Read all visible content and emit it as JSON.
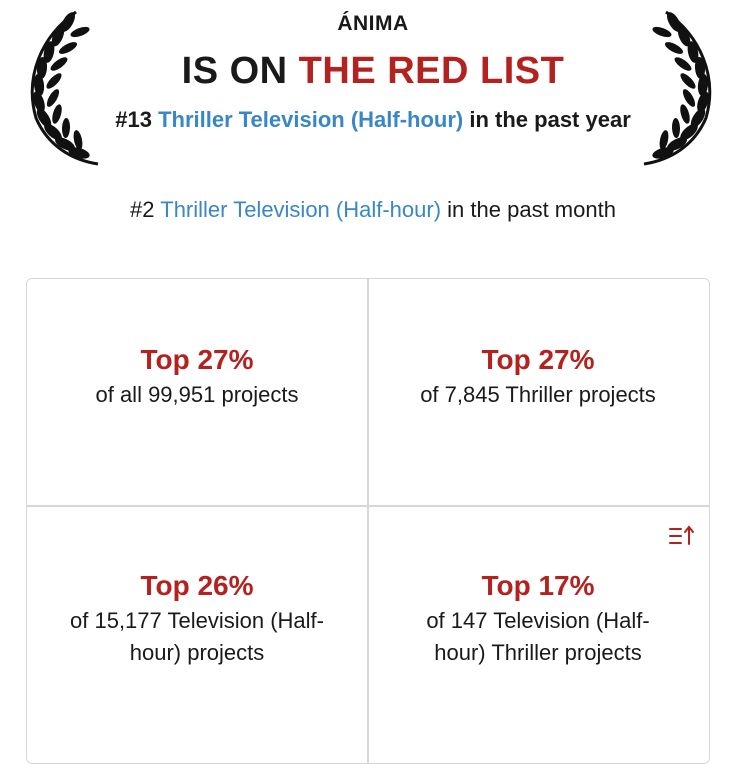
{
  "header": {
    "project_title": "ÁNIMA",
    "headline_prefix": "IS ON",
    "headline_highlight": "THE RED LIST"
  },
  "rankings": {
    "year": {
      "rank": "#13",
      "genre_link": "Thriller Television (Half-hour)",
      "suffix": "in the past year"
    },
    "month": {
      "rank": "#2",
      "genre_link": "Thriller Television (Half-hour)",
      "suffix": "in the past month"
    }
  },
  "stats": [
    {
      "percent": "Top 27%",
      "description": "of all 99,951 projects"
    },
    {
      "percent": "Top 27%",
      "description": "of 7,845 Thriller projects"
    },
    {
      "percent": "Top 26%",
      "description": "of 15,177 Television (Half-hour) projects"
    },
    {
      "percent": "Top 17%",
      "description": "of 147 Television (Half-hour) Thriller projects"
    }
  ],
  "icons": {
    "laurel_left": "laurel-left-icon",
    "laurel_right": "laurel-right-icon",
    "sort": "sort-icon"
  },
  "colors": {
    "accent_red": "#b3221f",
    "link_blue": "#3a87c8",
    "text": "#1a1a1a",
    "border": "#d7d7d7"
  }
}
